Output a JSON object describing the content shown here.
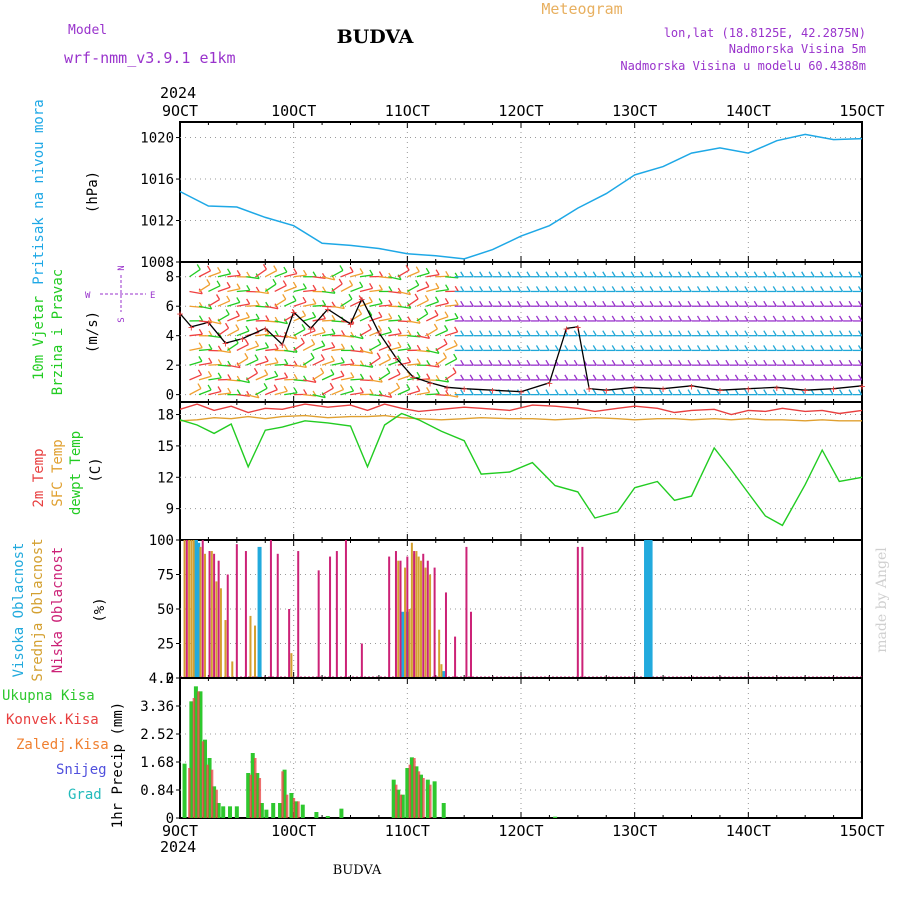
{
  "header": {
    "model_label": "Model",
    "model_name": "wrf-nmm_v3.9.1 e1km",
    "title": "BUDVA",
    "subtitle": "Meteogram",
    "coords": "lon,lat (18.8125E, 42.2875N)",
    "elevation": "Nadmorska Visina 5m",
    "model_elevation": "Nadmorska Visina u modelu 60.4388m",
    "year_top": "2024",
    "year_bottom": "2024",
    "footer": "BUDVA",
    "credit": "made by Angel"
  },
  "colors": {
    "pressure": "#1ea8e6",
    "temp2m": "#e84040",
    "sfc_temp": "#e0a030",
    "dewpoint": "#22cc22",
    "high_cloud": "#22aadd",
    "mid_cloud": "#d4a030",
    "low_cloud": "#cc2277",
    "total_precip": "#2ec82e",
    "conv_precip": "#e84040",
    "frozen_precip": "#f08030",
    "snow": "#5050dd",
    "hail": "#22bbbb",
    "wind_label": "#9933cc"
  },
  "time_axis": {
    "labels": [
      "9OCT",
      "10OCT",
      "11OCT",
      "12OCT",
      "13OCT",
      "14OCT",
      "15OCT"
    ]
  },
  "panel_labels": {
    "pressure": [
      "Pritisak na nivou mora",
      "(hPa)"
    ],
    "wind": [
      "10m Vjetar",
      "Brzina i Pravac",
      "(m/s)"
    ],
    "compass": {
      "n": "N",
      "s": "S",
      "w": "W",
      "e": "E"
    },
    "temperature": [
      "2m Temp",
      "SFC Temp",
      "dewpt Temp",
      "(C)"
    ],
    "clouds": [
      "Visoka Oblacnost",
      "Srednja Oblacnost",
      "Niska Oblacnost",
      "(%)"
    ],
    "precip_axis": [
      "1hr Precip (mm)"
    ],
    "precip_legend": [
      "Ukupna Kisa",
      "Konvek.Kisa",
      "Zaledj.Kisa",
      "Snijeg",
      "Grad"
    ]
  },
  "chart_data": [
    {
      "type": "line",
      "name": "pressure",
      "ylabel": "(hPa)",
      "ylim": [
        1008,
        1021.5
      ],
      "yticks": [
        "1008",
        "1012",
        "1016",
        "1020"
      ],
      "x": [
        0,
        0.25,
        0.5,
        0.75,
        1.0,
        1.25,
        1.5,
        1.75,
        2.0,
        2.25,
        2.5,
        2.75,
        3.0,
        3.25,
        3.5,
        3.75,
        4.0,
        4.25,
        4.5,
        4.75,
        5.0,
        5.25,
        5.5,
        5.75,
        6.0
      ],
      "values": [
        1014.8,
        1013.4,
        1013.3,
        1012.3,
        1011.5,
        1009.8,
        1009.6,
        1009.3,
        1008.8,
        1008.6,
        1008.3,
        1009.2,
        1010.5,
        1011.5,
        1013.2,
        1014.6,
        1016.4,
        1017.2,
        1018.5,
        1019.0,
        1018.5,
        1019.7,
        1020.3,
        1019.8,
        1019.9
      ]
    },
    {
      "type": "line",
      "name": "wind",
      "ylabel": "(m/s)",
      "ylim": [
        -0.5,
        9
      ],
      "yticks": [
        "0",
        "2",
        "4",
        "6",
        "8"
      ],
      "x": [
        0,
        0.1,
        0.25,
        0.4,
        0.55,
        0.75,
        0.9,
        1.0,
        1.15,
        1.3,
        1.5,
        1.6,
        1.75,
        1.9,
        2.05,
        2.2,
        2.35,
        2.5,
        2.75,
        3.0,
        3.25,
        3.4,
        3.5,
        3.6,
        3.75,
        4.0,
        4.25,
        4.5,
        4.75,
        5.0,
        5.25,
        5.5,
        5.75,
        6.0
      ],
      "values": [
        5.5,
        4.6,
        4.9,
        3.5,
        3.8,
        4.5,
        3.4,
        5.6,
        4.5,
        5.8,
        4.8,
        6.5,
        4.2,
        2.5,
        1.2,
        0.8,
        0.5,
        0.4,
        0.3,
        0.2,
        0.8,
        4.5,
        4.6,
        0.4,
        0.3,
        0.5,
        0.4,
        0.6,
        0.3,
        0.4,
        0.5,
        0.3,
        0.4,
        0.6
      ]
    },
    {
      "type": "line",
      "name": "temperature",
      "ylabel": "(C)",
      "ylim": [
        6,
        19.2
      ],
      "yticks": [
        "9",
        "12",
        "15",
        "18"
      ],
      "x": [
        0,
        0.15,
        0.3,
        0.45,
        0.6,
        0.75,
        0.9,
        1.1,
        1.3,
        1.5,
        1.65,
        1.8,
        1.95,
        2.1,
        2.3,
        2.5,
        2.65,
        2.9,
        3.1,
        3.3,
        3.5,
        3.65,
        3.85,
        4.0,
        4.2,
        4.35,
        4.5,
        4.7,
        4.85,
        5.0,
        5.15,
        5.3,
        5.5,
        5.65,
        5.8,
        6.0
      ],
      "series": [
        {
          "name": "2m Temp",
          "values": [
            18.5,
            19.0,
            18.4,
            18.8,
            18.2,
            18.6,
            18.5,
            19.0,
            18.7,
            18.9,
            18.4,
            19.0,
            18.6,
            18.3,
            18.5,
            18.7,
            18.6,
            18.4,
            18.9,
            18.8,
            18.6,
            18.3,
            18.6,
            18.8,
            18.6,
            18.2,
            18.4,
            18.5,
            18.0,
            18.4,
            18.3,
            18.6,
            18.3,
            18.4,
            18.1,
            18.4
          ]
        },
        {
          "name": "SFC Temp",
          "values": [
            17.4,
            17.5,
            17.7,
            17.6,
            17.8,
            17.6,
            17.8,
            17.9,
            17.7,
            17.8,
            17.8,
            17.9,
            17.7,
            17.6,
            17.5,
            17.6,
            17.7,
            17.6,
            17.6,
            17.5,
            17.6,
            17.7,
            17.6,
            17.5,
            17.6,
            17.6,
            17.5,
            17.6,
            17.5,
            17.6,
            17.5,
            17.5,
            17.4,
            17.5,
            17.4,
            17.4
          ]
        },
        {
          "name": "dewpt Temp",
          "values": [
            17.5,
            17.0,
            16.2,
            17.1,
            13.0,
            16.5,
            16.8,
            17.4,
            17.2,
            16.9,
            13.0,
            17.0,
            18.1,
            17.5,
            16.4,
            15.5,
            12.3,
            12.5,
            13.4,
            11.2,
            10.6,
            8.1,
            8.7,
            11.0,
            11.6,
            9.8,
            10.2,
            14.8,
            12.7,
            10.5,
            8.3,
            7.4,
            11.3,
            14.6,
            11.6,
            12.0
          ]
        }
      ]
    },
    {
      "type": "bar",
      "name": "clouds",
      "ylabel": "(%)",
      "ylim": [
        0,
        100
      ],
      "yticks": [
        "0",
        "25",
        "50",
        "75",
        "100"
      ],
      "series": [
        {
          "name": "Visoka Oblacnost",
          "x": [
            0.14,
            0.16,
            0.7,
            1.96,
            2.0,
            2.32,
            4.1,
            4.12,
            4.14
          ],
          "values": [
            100,
            98,
            95,
            48,
            48,
            5,
            100,
            100,
            100
          ]
        },
        {
          "name": "Srednja Oblacnost",
          "x": [
            0.04,
            0.08,
            0.1,
            0.12,
            0.18,
            0.22,
            0.28,
            0.32,
            0.36,
            0.4,
            0.46,
            0.62,
            0.66,
            0.98,
            1.92,
            1.98,
            2.02,
            2.04,
            2.06,
            2.08,
            2.1,
            2.12,
            2.16,
            2.2,
            2.28,
            2.3
          ],
          "values": [
            100,
            100,
            100,
            100,
            95,
            90,
            92,
            70,
            65,
            42,
            12,
            45,
            38,
            18,
            85,
            80,
            50,
            98,
            90,
            92,
            88,
            85,
            80,
            75,
            35,
            10
          ]
        },
        {
          "name": "Niska Oblacnost",
          "x": [
            0.06,
            0.2,
            0.26,
            0.3,
            0.34,
            0.42,
            0.5,
            0.58,
            0.8,
            0.86,
            0.96,
            1.04,
            1.22,
            1.32,
            1.38,
            1.46,
            1.6,
            1.84,
            1.9,
            1.94,
            2.0,
            2.06,
            2.14,
            2.18,
            2.24,
            2.34,
            2.42,
            2.52,
            2.56,
            3.5,
            3.54
          ],
          "values": [
            100,
            100,
            92,
            90,
            85,
            75,
            97,
            92,
            100,
            90,
            50,
            92,
            78,
            88,
            92,
            100,
            25,
            88,
            92,
            85,
            88,
            92,
            90,
            85,
            80,
            62,
            30,
            95,
            48,
            95,
            95
          ]
        }
      ]
    },
    {
      "type": "bar",
      "name": "precipitation",
      "ylabel": "1hr Precip (mm)",
      "ylim": [
        0,
        4.2
      ],
      "yticks": [
        "0",
        "0.84",
        "1.68",
        "2.52",
        "3.36",
        "4.2"
      ],
      "series": [
        {
          "name": "Ukupna Kisa",
          "x": [
            0.04,
            0.1,
            0.14,
            0.18,
            0.22,
            0.26,
            0.3,
            0.34,
            0.38,
            0.44,
            0.5,
            0.6,
            0.64,
            0.68,
            0.72,
            0.76,
            0.82,
            0.88,
            0.92,
            0.98,
            1.02,
            1.08,
            1.2,
            1.3,
            1.42,
            1.88,
            1.92,
            1.96,
            2.0,
            2.04,
            2.08,
            2.12,
            2.18,
            2.24,
            2.32,
            3.3
          ],
          "values": [
            1.63,
            3.5,
            3.95,
            3.8,
            2.35,
            1.8,
            0.95,
            0.45,
            0.35,
            0.35,
            0.35,
            1.35,
            1.95,
            1.35,
            0.45,
            0.25,
            0.45,
            0.45,
            1.45,
            0.75,
            0.5,
            0.4,
            0.18,
            0.06,
            0.28,
            1.15,
            0.85,
            0.7,
            1.5,
            1.82,
            1.55,
            1.3,
            1.15,
            1.1,
            0.45,
            0.04
          ]
        },
        {
          "name": "Konvek.Kisa",
          "x": [
            0.08,
            0.12,
            0.16,
            0.2,
            0.24,
            0.28,
            0.32,
            0.62,
            0.66,
            0.7,
            0.9,
            0.94,
            1.0,
            1.04,
            1.9,
            1.94,
            2.02,
            2.06,
            2.1,
            2.14,
            2.2
          ],
          "values": [
            1.5,
            3.6,
            3.8,
            2.3,
            1.6,
            1.45,
            0.85,
            1.3,
            1.8,
            1.2,
            1.4,
            0.7,
            0.6,
            0.5,
            1.0,
            0.7,
            1.6,
            1.8,
            1.4,
            1.2,
            1.0
          ]
        },
        {
          "name": "Zaledj.Kisa",
          "values": []
        },
        {
          "name": "Snijeg",
          "values": []
        },
        {
          "name": "Grad",
          "values": []
        }
      ]
    }
  ]
}
